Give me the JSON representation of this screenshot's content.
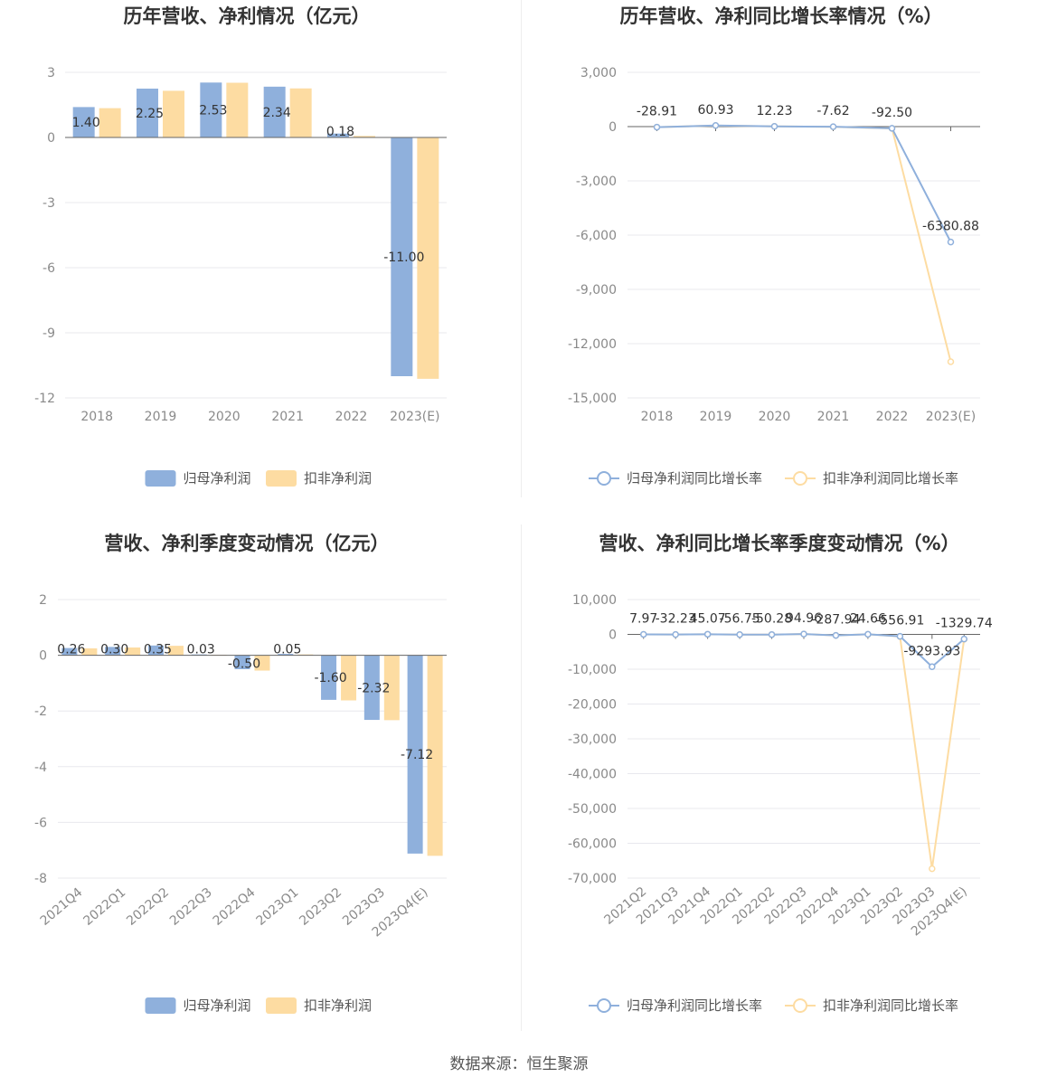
{
  "colors": {
    "net": "#8fb0dc",
    "deducted": "#fddca2",
    "grid": "#e8e8ee",
    "axis": "#666666"
  },
  "source": "数据来源：恒生聚源",
  "chart_data": [
    {
      "type": "bar",
      "title": "历年营收、净利情况（亿元）",
      "categories": [
        "2018",
        "2019",
        "2020",
        "2021",
        "2022",
        "2023(E)"
      ],
      "ylim": [
        -12,
        3
      ],
      "yticks": [
        "3",
        "0",
        "-3",
        "-6",
        "-9",
        "-12"
      ],
      "series": [
        {
          "name": "归母净利润",
          "values": [
            1.4,
            2.25,
            2.53,
            2.34,
            0.18,
            -11.0
          ],
          "labels": [
            "1.40",
            "2.25",
            "2.53",
            "2.34",
            "0.18",
            "-11.00"
          ]
        },
        {
          "name": "扣非净利润",
          "values": [
            1.35,
            2.15,
            2.52,
            2.26,
            0.07,
            -11.12
          ]
        }
      ],
      "legend": "bottom"
    },
    {
      "type": "line",
      "title": "历年营收、净利同比增长率情况（%）",
      "categories": [
        "2018",
        "2019",
        "2020",
        "2021",
        "2022",
        "2023(E)"
      ],
      "ylim": [
        -15000,
        3000
      ],
      "yticks": [
        "3,000",
        "0",
        "-3,000",
        "-6,000",
        "-9,000",
        "-12,000",
        "-15,000"
      ],
      "series": [
        {
          "name": "归母净利润同比增长率",
          "values": [
            -28.91,
            60.93,
            12.23,
            -7.62,
            -92.5,
            -6380.88
          ],
          "labels": [
            "-28.91",
            "60.93",
            "12.23",
            "-7.62",
            "-92.50",
            "-6380.88"
          ]
        },
        {
          "name": "扣非净利润同比增长率",
          "values": [
            -30,
            55,
            15,
            -12,
            -97,
            -13000
          ]
        }
      ],
      "legend": "bottom"
    },
    {
      "type": "bar",
      "title": "营收、净利季度变动情况（亿元）",
      "categories": [
        "2021Q4",
        "2022Q1",
        "2022Q2",
        "2022Q3",
        "2022Q4",
        "2023Q1",
        "2023Q2",
        "2023Q3",
        "2023Q4(E)"
      ],
      "ylim": [
        -8,
        2
      ],
      "yticks": [
        "2",
        "0",
        "-2",
        "-4",
        "-6",
        "-8"
      ],
      "series": [
        {
          "name": "归母净利润",
          "values": [
            0.26,
            0.3,
            0.35,
            0.03,
            -0.5,
            0.05,
            -1.6,
            -2.32,
            -7.12
          ],
          "labels": [
            "0.26",
            "0.30",
            "0.35",
            "0.03",
            "-0.50",
            "0.05",
            "-1.60",
            "-2.32",
            "-7.12"
          ]
        },
        {
          "name": "扣非净利润",
          "values": [
            0.25,
            0.28,
            0.34,
            0.02,
            -0.55,
            0.03,
            -1.62,
            -2.33,
            -7.2
          ]
        }
      ],
      "legend": "bottom"
    },
    {
      "type": "line",
      "title": "营收、净利同比增长率季度变动情况（%）",
      "categories": [
        "2021Q2",
        "2021Q3",
        "2021Q4",
        "2022Q1",
        "2022Q2",
        "2022Q3",
        "2022Q4",
        "2023Q1",
        "2023Q2",
        "2023Q3",
        "2023Q4(E)"
      ],
      "ylim": [
        -70000,
        10000
      ],
      "yticks": [
        "10,000",
        "0",
        "-10,000",
        "-20,000",
        "-30,000",
        "-40,000",
        "-50,000",
        "-60,000",
        "-70,000"
      ],
      "series": [
        {
          "name": "归母净利润同比增长率",
          "values": [
            7.97,
            -32.23,
            45.07,
            -56.75,
            -50.28,
            94.96,
            -287.94,
            24.66,
            -556.91,
            -9293.93,
            -1329.74
          ],
          "labels": [
            "7.97",
            "-32.23",
            "45.07",
            "-56.75",
            "-50.28",
            "94.96",
            "-287.94",
            "24.66",
            "-556.91",
            "-9293.93",
            "-1329.74"
          ]
        },
        {
          "name": "扣非净利润同比增长率",
          "values": [
            8,
            -30,
            40,
            -60,
            -55,
            90,
            -300,
            20,
            -600,
            -67300,
            -1400
          ]
        }
      ],
      "legend": "bottom"
    }
  ]
}
